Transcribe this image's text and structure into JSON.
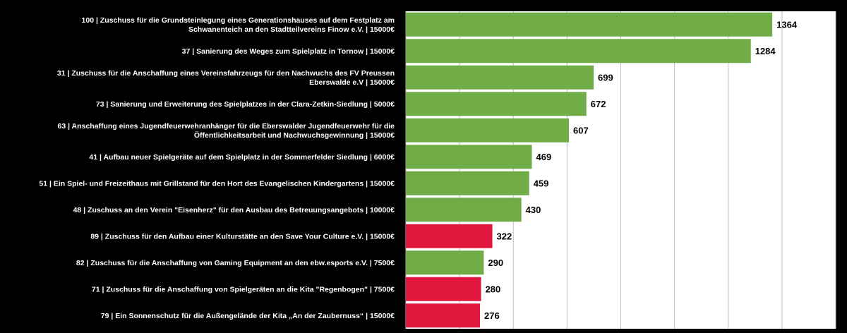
{
  "chart_data": {
    "type": "bar",
    "orientation": "horizontal",
    "categories": [
      [
        "100 | Zuschuss für die Grundsteinlegung eines Generationshauses auf dem Festplatz am",
        "Schwanenteich an den Stadtteilvereins Finow e.V. | 15000€"
      ],
      [
        "37 | Sanierung des Weges zum Spielplatz in Tornow  | 15000€"
      ],
      [
        "31 | Zuschuss für die Anschaffung eines Vereinsfahrzeugs für den Nachwuchs des FV Preussen",
        "Eberswalde e.V | 15000€"
      ],
      [
        "73 | Sanierung und Erweiterung des Spielplatzes in der Clara-Zetkin-Siedlung  | 5000€"
      ],
      [
        "63 | Anschaffung eines Jugendfeuerwehranhänger für die Eberswalder Jugendfeuerwehr für die",
        "Öffentlichkeitsarbeit und Nachwuchsgewinnung  | 15000€"
      ],
      [
        "41 | Aufbau neuer Spielgeräte auf dem Spielplatz in der Sommerfelder Siedlung | 6000€"
      ],
      [
        "51 | Ein Spiel- und Freizeithaus mit Grillstand für den Hort des Evangelischen Kindergartens | 15000€"
      ],
      [
        "48 | Zuschuss an den Verein \"Eisenherz\" für den Ausbau des Betreuungsangebots | 10000€"
      ],
      [
        "89 | Zuschuss für den Aufbau einer Kulturstätte an den Save Your Culture e.V.  | 15000€"
      ],
      [
        "82 | Zuschuss für die Anschaffung von Gaming Equipment an den ebw.esports e.V. | 7500€"
      ],
      [
        "71 | Zuschuss für die Anschaffung von Spielgeräten an die Kita \"Regenbogen\" | 7500€"
      ],
      [
        "79 | Ein Sonnenschutz für die Außengelände der Kita „An der Zaubernuss“ | 15000€"
      ]
    ],
    "values": [
      1364,
      1284,
      699,
      672,
      607,
      469,
      459,
      430,
      322,
      290,
      280,
      276
    ],
    "bar_colors": [
      "#70ad47",
      "#70ad47",
      "#70ad47",
      "#70ad47",
      "#70ad47",
      "#70ad47",
      "#70ad47",
      "#70ad47",
      "#e0163d",
      "#70ad47",
      "#e0163d",
      "#e0163d"
    ],
    "xlim": [
      0,
      1600
    ],
    "x_gridlines": [
      0,
      200,
      400,
      600,
      800,
      1000,
      1200,
      1400,
      1600
    ],
    "grid": true,
    "data_labels": true
  },
  "colors": {
    "background": "#000000",
    "plot_area": "#ffffff",
    "gridline": "#bfbfbf",
    "green": "#70ad47",
    "red": "#e0163d"
  }
}
